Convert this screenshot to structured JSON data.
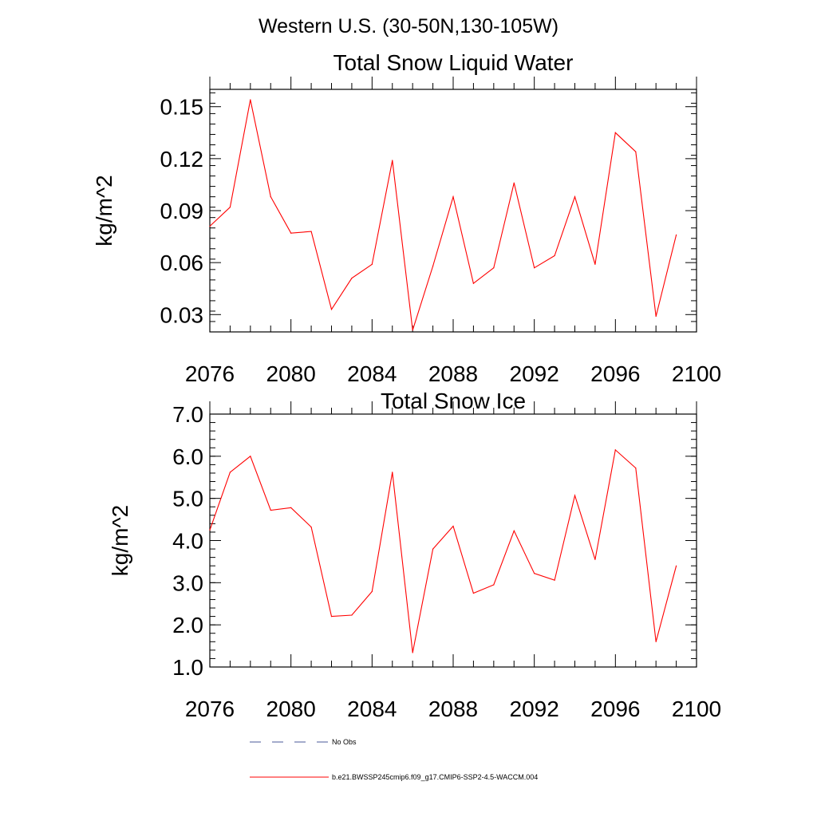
{
  "main_title": "Western U.S. (30-50N,130-105W)",
  "colors": {
    "model_line": "#ff0000",
    "obs_line": "#4a5a9a",
    "axis": "#000000"
  },
  "chart_data": [
    {
      "type": "line",
      "title": "Total Snow Liquid Water",
      "xlabel": "",
      "ylabel": "kg/m^2",
      "xlim": [
        2076,
        2100
      ],
      "ylim": [
        0.02,
        0.16
      ],
      "xticks": [
        2076,
        2080,
        2084,
        2088,
        2092,
        2096,
        2100
      ],
      "yticks": [
        0.03,
        0.06,
        0.09,
        0.12,
        0.15
      ],
      "ytick_labels": [
        "0.03",
        "0.06",
        "0.09",
        "0.12",
        "0.15"
      ],
      "x": [
        2076,
        2077,
        2078,
        2079,
        2080,
        2081,
        2082,
        2083,
        2084,
        2085,
        2086,
        2087,
        2088,
        2089,
        2090,
        2091,
        2092,
        2093,
        2094,
        2095,
        2096,
        2097,
        2098,
        2099
      ],
      "series": [
        {
          "name": "b.e21.BWSSP245cmip6.f09_g17.CMIP6-SSP2-4.5-WACCM.004",
          "values": [
            0.081,
            0.092,
            0.154,
            0.098,
            0.077,
            0.078,
            0.033,
            0.051,
            0.059,
            0.119,
            0.021,
            0.058,
            0.098,
            0.048,
            0.057,
            0.106,
            0.057,
            0.064,
            0.098,
            0.059,
            0.135,
            0.124,
            0.029,
            0.076
          ]
        }
      ],
      "grid": false
    },
    {
      "type": "line",
      "title": "Total Snow Ice",
      "xlabel": "",
      "ylabel": "kg/m^2",
      "xlim": [
        2076,
        2100
      ],
      "ylim": [
        1.0,
        7.0
      ],
      "xticks": [
        2076,
        2080,
        2084,
        2088,
        2092,
        2096,
        2100
      ],
      "yticks": [
        1.0,
        2.0,
        3.0,
        4.0,
        5.0,
        6.0,
        7.0
      ],
      "ytick_labels": [
        "1.0",
        "2.0",
        "3.0",
        "4.0",
        "5.0",
        "6.0",
        "7.0"
      ],
      "x": [
        2076,
        2077,
        2078,
        2079,
        2080,
        2081,
        2082,
        2083,
        2084,
        2085,
        2086,
        2087,
        2088,
        2089,
        2090,
        2091,
        2092,
        2093,
        2094,
        2095,
        2096,
        2097,
        2098,
        2099
      ],
      "series": [
        {
          "name": "b.e21.BWSSP245cmip6.f09_g17.CMIP6-SSP2-4.5-WACCM.004",
          "values": [
            4.25,
            5.62,
            6.0,
            4.72,
            4.78,
            4.32,
            2.2,
            2.23,
            2.79,
            5.62,
            1.34,
            3.8,
            4.34,
            2.75,
            2.95,
            4.23,
            3.22,
            3.06,
            5.07,
            3.55,
            6.15,
            5.72,
            1.6,
            3.4
          ]
        }
      ],
      "grid": false
    }
  ],
  "legend": {
    "placement": "bottom",
    "items": [
      {
        "label": "No Obs",
        "style": "dashed",
        "color": "#4a5a9a"
      },
      {
        "label": "b.e21.BWSSP245cmip6.f09_g17.CMIP6-SSP2-4.5-WACCM.004",
        "style": "solid",
        "color": "#ff0000"
      }
    ]
  }
}
